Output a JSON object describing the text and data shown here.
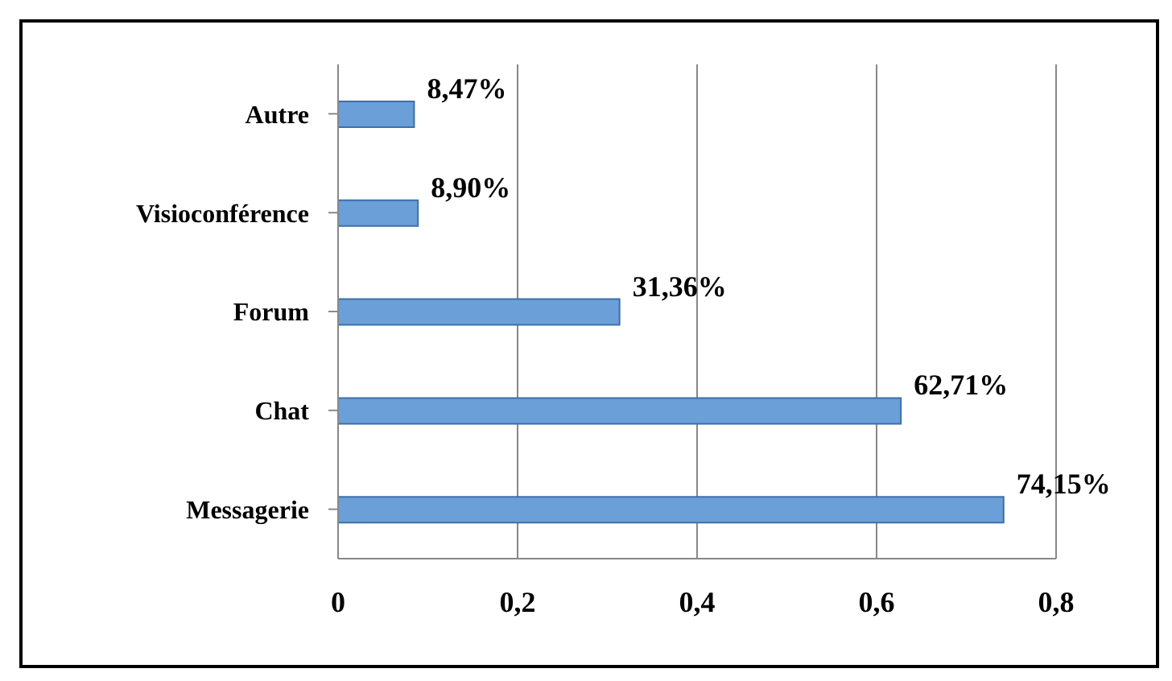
{
  "chart_data": {
    "type": "bar",
    "orientation": "horizontal",
    "categories": [
      "Autre",
      "Visioconférence",
      "Forum",
      "Chat",
      "Messagerie"
    ],
    "values": [
      0.0847,
      0.089,
      0.3136,
      0.6271,
      0.7415
    ],
    "value_labels": [
      "8,47%",
      "8,90%",
      "31,36%",
      "62,71%",
      "74,15%"
    ],
    "color": "#6a9fd8",
    "xlim": [
      0,
      0.8
    ],
    "xticks": [
      0,
      {
        "value": 0.2,
        "label": "0,2"
      },
      {
        "value": 0.4,
        "label": "0,4"
      },
      {
        "value": 0.6,
        "label": "0,6"
      },
      {
        "value": 0.8,
        "label": "0,8"
      }
    ],
    "grid": "x"
  }
}
